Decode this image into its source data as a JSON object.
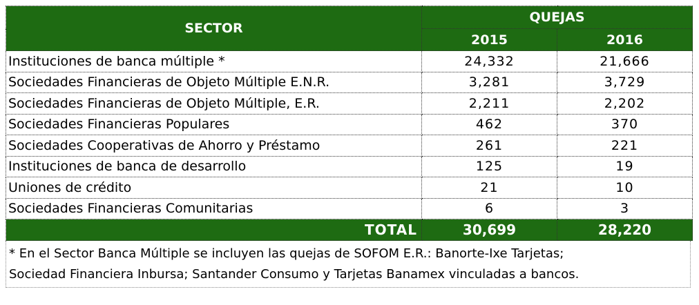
{
  "header": {
    "sector": "SECTOR",
    "quejas": "QUEJAS",
    "year1": "2015",
    "year2": "2016"
  },
  "rows": [
    {
      "sector": "Instituciones de banca múltiple *",
      "y2015": "24,332",
      "y2016": "21,666"
    },
    {
      "sector": "Sociedades Financieras de Objeto Múltiple E.N.R.",
      "y2015": "3,281",
      "y2016": "3,729"
    },
    {
      "sector": "Sociedades Financieras de Objeto Múltiple, E.R.",
      "y2015": "2,211",
      "y2016": "2,202"
    },
    {
      "sector": "Sociedades Financieras Populares",
      "y2015": "462",
      "y2016": "370"
    },
    {
      "sector": "Sociedades Cooperativas de Ahorro y Préstamo",
      "y2015": "261",
      "y2016": "221"
    },
    {
      "sector": "Instituciones de banca de desarrollo",
      "y2015": "125",
      "y2016": "19"
    },
    {
      "sector": "Uniones de crédito",
      "y2015": "21",
      "y2016": "10"
    },
    {
      "sector": "Sociedades Financieras Comunitarias",
      "y2015": "6",
      "y2016": "3"
    }
  ],
  "total": {
    "label": "TOTAL",
    "y2015": "30,699",
    "y2016": "28,220"
  },
  "footnote": {
    "line1": "* En el Sector Banca Múltiple se incluyen las quejas de SOFOM E.R.: Banorte-Ixe Tarjetas;",
    "line2": "Sociedad Financiera Inbursa; Santander Consumo y Tarjetas Banamex vinculadas a bancos."
  },
  "colors": {
    "header_bg": "#1e6b12",
    "header_text": "#ffffff"
  }
}
